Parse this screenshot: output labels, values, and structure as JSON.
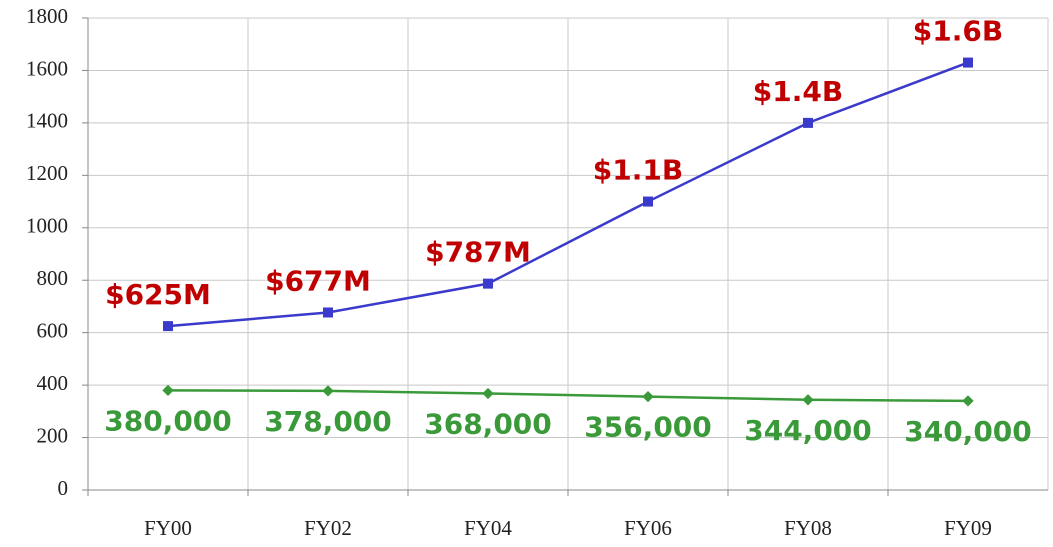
{
  "chart_data": {
    "type": "line",
    "categories": [
      "FY00",
      "FY02",
      "FY04",
      "FY06",
      "FY08",
      "FY09"
    ],
    "series": [
      {
        "color": "#3a3acc",
        "label_color": "#c00000",
        "values": [
          625,
          677,
          787,
          1100,
          1400,
          1630
        ],
        "value_labels": [
          "$625M",
          "$677M",
          "$787M",
          "$1.1B",
          "$1.4B",
          "$1.6B"
        ]
      },
      {
        "color": "#3a9a3a",
        "label_color": "#3a9a3a",
        "values": [
          380,
          378,
          368,
          356,
          344,
          340
        ],
        "value_labels": [
          "380,000",
          "378,000",
          "368,000",
          "356,000",
          "344,000",
          "340,000"
        ]
      }
    ],
    "ylim": [
      0,
      1800
    ],
    "yticks": [
      0,
      200,
      400,
      600,
      800,
      1000,
      1200,
      1400,
      1600,
      1800
    ],
    "grid": true
  }
}
